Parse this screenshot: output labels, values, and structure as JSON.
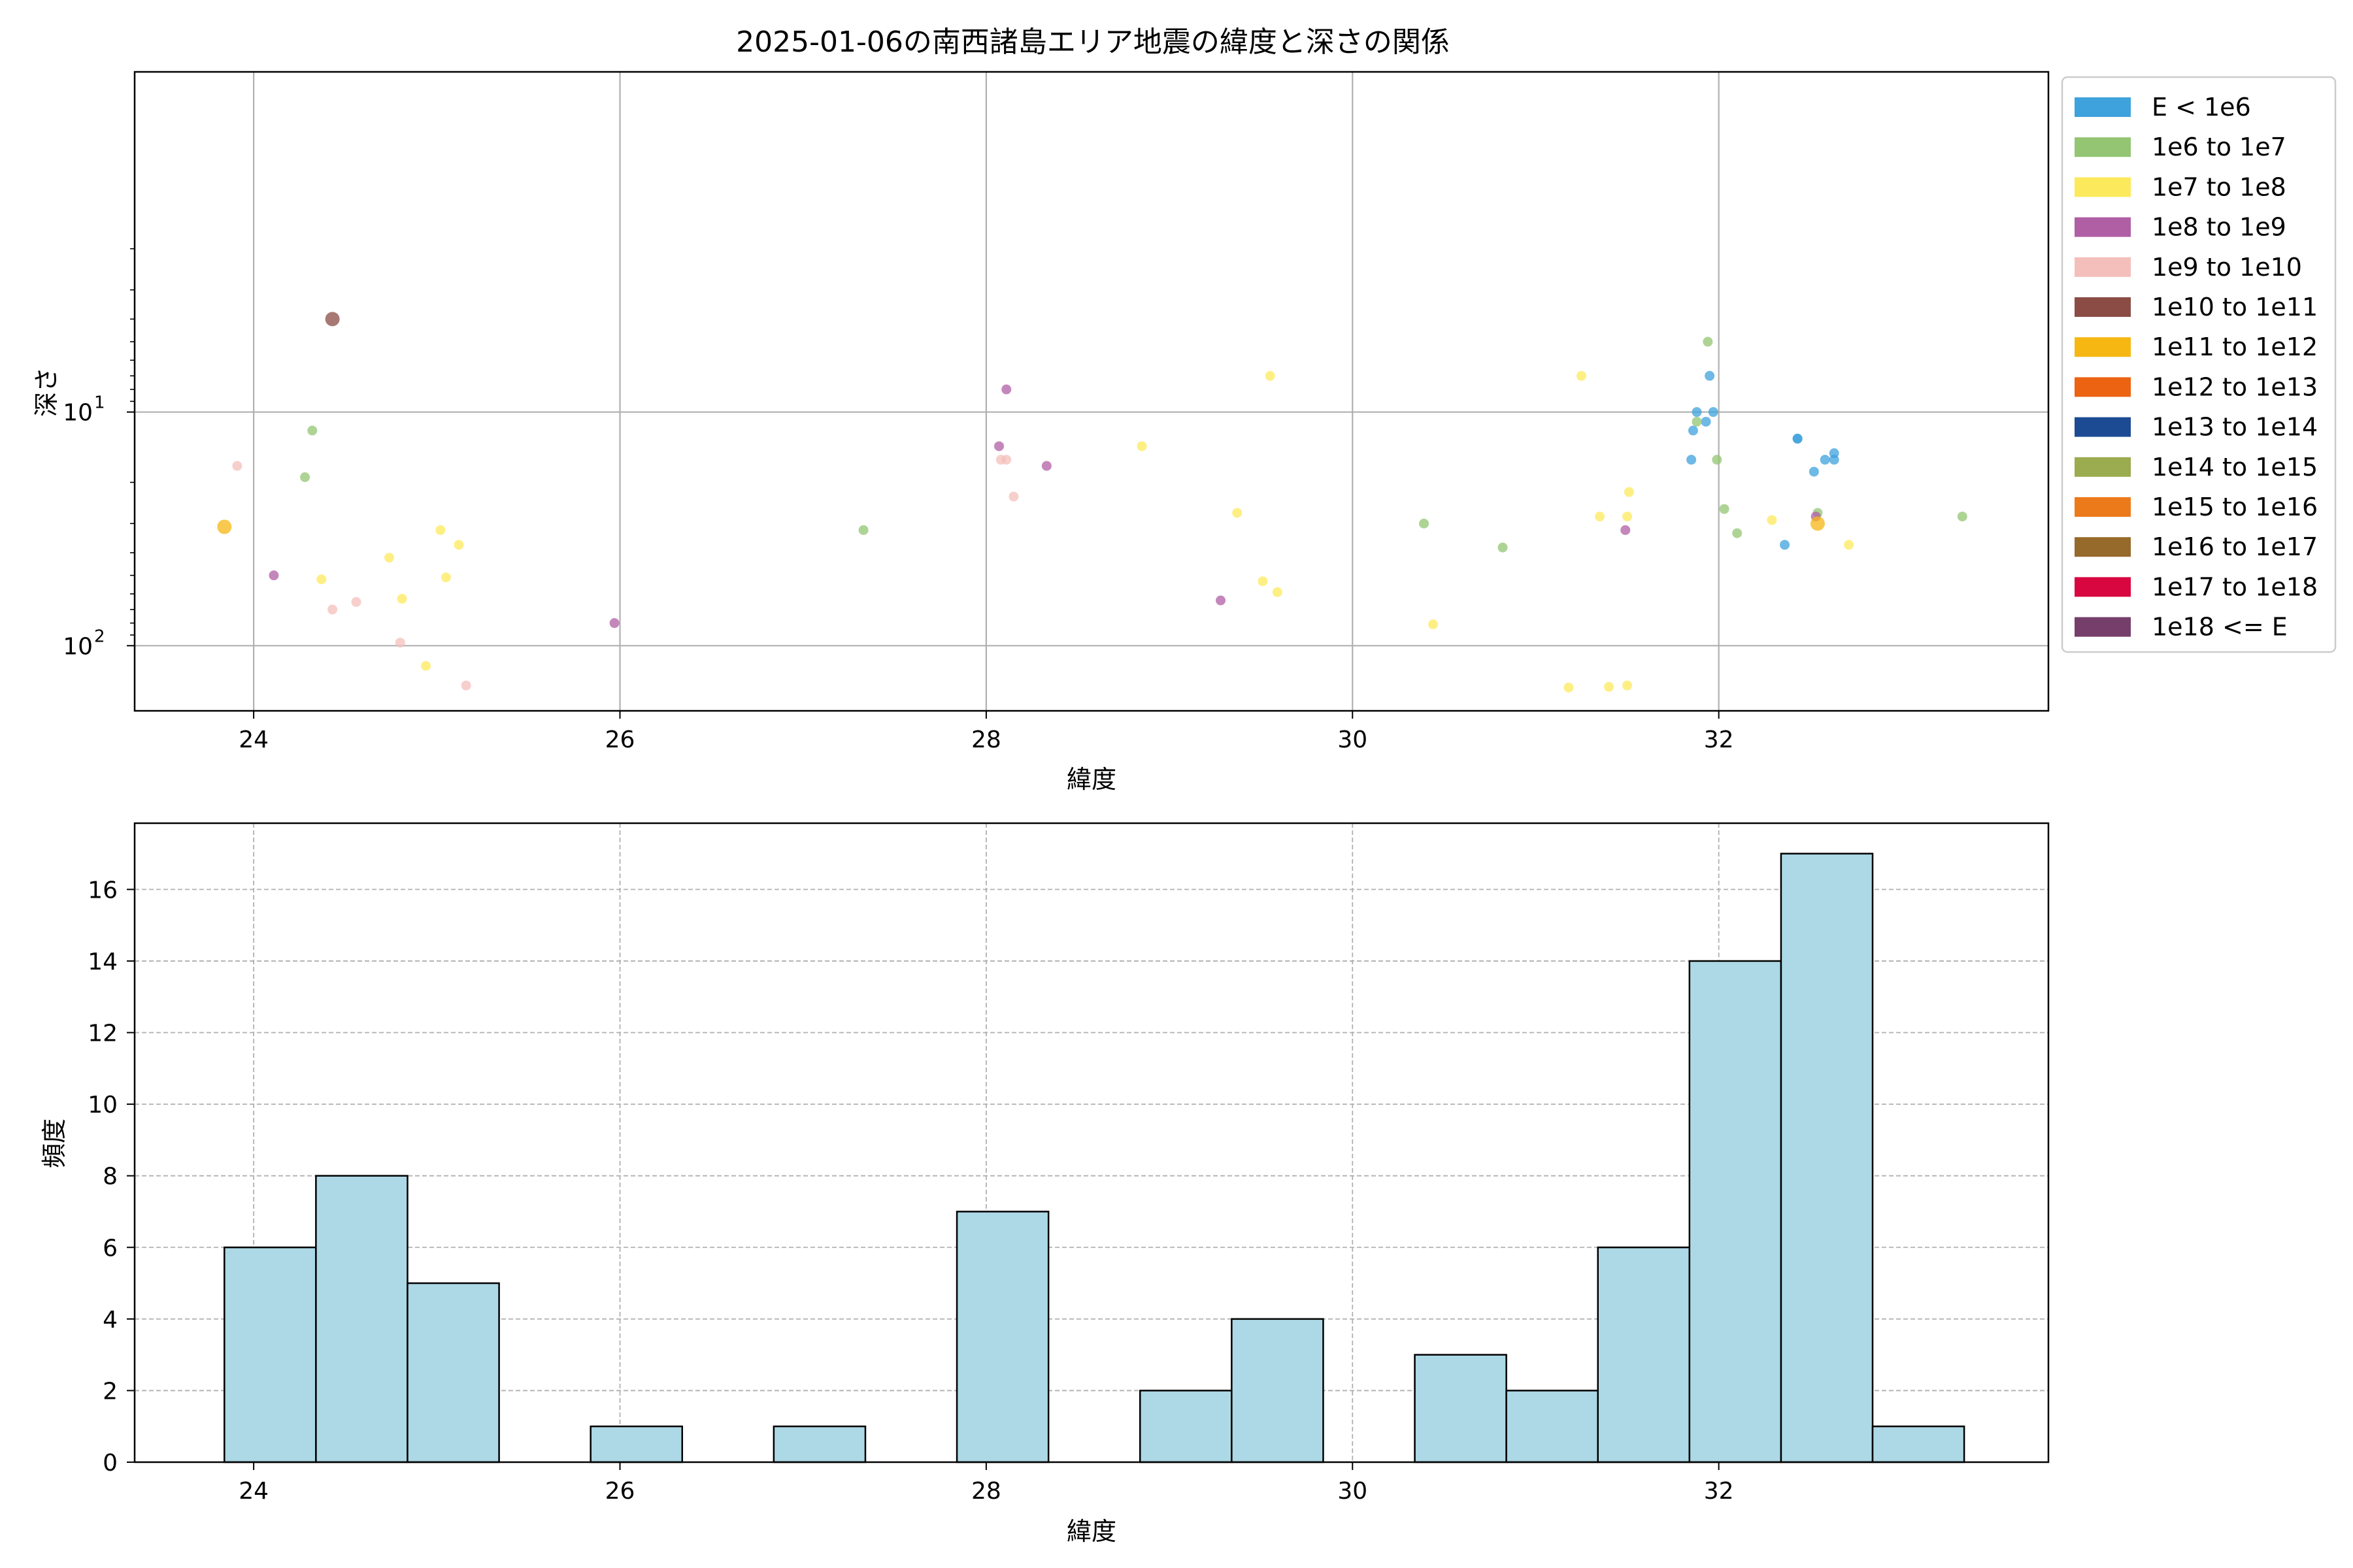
{
  "chart_data": [
    {
      "type": "scatter",
      "title": "2025-01-06の南西諸島エリア地震の緯度と深さの関係",
      "xlabel": "緯度",
      "ylabel": "深さ",
      "xlim": [
        23.35,
        33.8
      ],
      "ylim": [
        0.35,
        190
      ],
      "yscale": "log",
      "yaxis_inverted": true,
      "x_ticks": [
        "24",
        "26",
        "28",
        "30",
        "32"
      ],
      "x_tick_values": [
        24,
        26,
        28,
        30,
        32
      ],
      "y_ticks": [
        {
          "value": 10,
          "mantissa": "10",
          "exp": "1"
        },
        {
          "value": 100,
          "mantissa": "10",
          "exp": "2"
        }
      ],
      "grid": true,
      "legend_placement": "outside-upper-right",
      "legend": [
        {
          "label": "E < 1e6",
          "color": "#3ea2dc"
        },
        {
          "label": "1e6 to 1e7",
          "color": "#93c572"
        },
        {
          "label": "1e7 to 1e8",
          "color": "#fde95c"
        },
        {
          "label": "1e8 to 1e9",
          "color": "#b05fa5"
        },
        {
          "label": "1e9 to 1e10",
          "color": "#f4bfbb"
        },
        {
          "label": "1e10 to 1e11",
          "color": "#8b4c45"
        },
        {
          "label": "1e11 to 1e12",
          "color": "#f6b713"
        },
        {
          "label": "1e12 to 1e13",
          "color": "#ec6312"
        },
        {
          "label": "1e13 to 1e14",
          "color": "#1c4b94"
        },
        {
          "label": "1e14 to 1e15",
          "color": "#9bab4f"
        },
        {
          "label": "1e15 to 1e16",
          "color": "#ec7a1b"
        },
        {
          "label": "1e16 to 1e17",
          "color": "#966a2b"
        },
        {
          "label": "1e17 to 1e18",
          "color": "#d8073f"
        },
        {
          "label": "1e18 <= E",
          "color": "#763f6b"
        }
      ],
      "series": [
        {
          "name": "E < 1e6",
          "color": "#3ea2dc",
          "points": [
            [
              31.95,
              7
            ],
            [
              31.88,
              10
            ],
            [
              31.97,
              10
            ],
            [
              31.93,
              11
            ],
            [
              31.86,
              12
            ],
            [
              32.43,
              13
            ],
            [
              32.43,
              13
            ],
            [
              31.85,
              16
            ],
            [
              32.63,
              15
            ],
            [
              32.58,
              16
            ],
            [
              32.63,
              16
            ],
            [
              32.52,
              18
            ],
            [
              32.36,
              37
            ]
          ]
        },
        {
          "name": "1e6 to 1e7",
          "color": "#93c572",
          "points": [
            [
              31.94,
              5
            ],
            [
              24.32,
              12
            ],
            [
              31.88,
              11
            ],
            [
              24.28,
              19
            ],
            [
              31.99,
              16
            ],
            [
              27.33,
              32
            ],
            [
              30.39,
              30
            ],
            [
              30.82,
              38
            ],
            [
              32.03,
              26
            ],
            [
              32.1,
              33
            ],
            [
              32.54,
              27
            ],
            [
              33.33,
              28
            ]
          ]
        },
        {
          "name": "1e7 to 1e8",
          "color": "#fde95c",
          "points": [
            [
              29.55,
              7
            ],
            [
              31.25,
              7
            ],
            [
              28.85,
              14
            ],
            [
              31.51,
              22
            ],
            [
              29.37,
              27
            ],
            [
              31.35,
              28
            ],
            [
              31.5,
              28
            ],
            [
              32.29,
              29
            ],
            [
              32.71,
              37
            ],
            [
              25.02,
              32
            ],
            [
              25.12,
              37
            ],
            [
              24.74,
              42
            ],
            [
              24.37,
              52
            ],
            [
              25.05,
              51
            ],
            [
              29.51,
              53
            ],
            [
              29.59,
              59
            ],
            [
              24.81,
              63
            ],
            [
              30.44,
              81
            ],
            [
              24.94,
              122
            ],
            [
              31.18,
              151
            ],
            [
              31.4,
              150
            ],
            [
              31.5,
              148
            ]
          ]
        },
        {
          "name": "1e8 to 1e9",
          "color": "#b05fa5",
          "points": [
            [
              28.11,
              8
            ],
            [
              28.07,
              14
            ],
            [
              28.33,
              17
            ],
            [
              32.53,
              28
            ],
            [
              31.49,
              32
            ],
            [
              24.11,
              50
            ],
            [
              29.28,
              64
            ],
            [
              25.97,
              80
            ]
          ]
        },
        {
          "name": "1e9 to 1e10",
          "color": "#f4bfbb",
          "points": [
            [
              28.08,
              16
            ],
            [
              28.11,
              16
            ],
            [
              23.91,
              17
            ],
            [
              28.15,
              23
            ],
            [
              24.56,
              65
            ],
            [
              24.43,
              70
            ],
            [
              24.8,
              97
            ],
            [
              25.16,
              148
            ]
          ]
        },
        {
          "name": "1e10 to 1e11",
          "color": "#8b4c45",
          "points": [
            [
              24.43,
              4
            ]
          ]
        },
        {
          "name": "1e11 to 1e12",
          "color": "#f6b713",
          "points": [
            [
              23.84,
              31
            ],
            [
              32.54,
              30
            ]
          ]
        }
      ]
    },
    {
      "type": "bar",
      "title": "",
      "xlabel": "緯度",
      "ylabel": "頻度",
      "xlim": [
        23.35,
        33.8
      ],
      "ylim": [
        0,
        17.85
      ],
      "x_ticks": [
        "24",
        "26",
        "28",
        "30",
        "32"
      ],
      "x_tick_values": [
        24,
        26,
        28,
        30,
        32
      ],
      "y_ticks": [
        "0",
        "2",
        "4",
        "6",
        "8",
        "10",
        "12",
        "14",
        "16"
      ],
      "y_tick_values": [
        0,
        2,
        4,
        6,
        8,
        10,
        12,
        14,
        16
      ],
      "grid": true,
      "bar_color": "#add8e6",
      "bin_edges": [
        23.84,
        24.34,
        24.84,
        25.34,
        25.84,
        26.34,
        26.84,
        27.34,
        27.84,
        28.34,
        28.84,
        29.34,
        29.84,
        30.34,
        30.84,
        31.34,
        31.84,
        32.34,
        32.84,
        33.34
      ],
      "values": [
        6,
        8,
        5,
        0,
        1,
        0,
        1,
        0,
        7,
        0,
        2,
        4,
        0,
        3,
        2,
        6,
        14,
        17,
        1
      ]
    }
  ]
}
